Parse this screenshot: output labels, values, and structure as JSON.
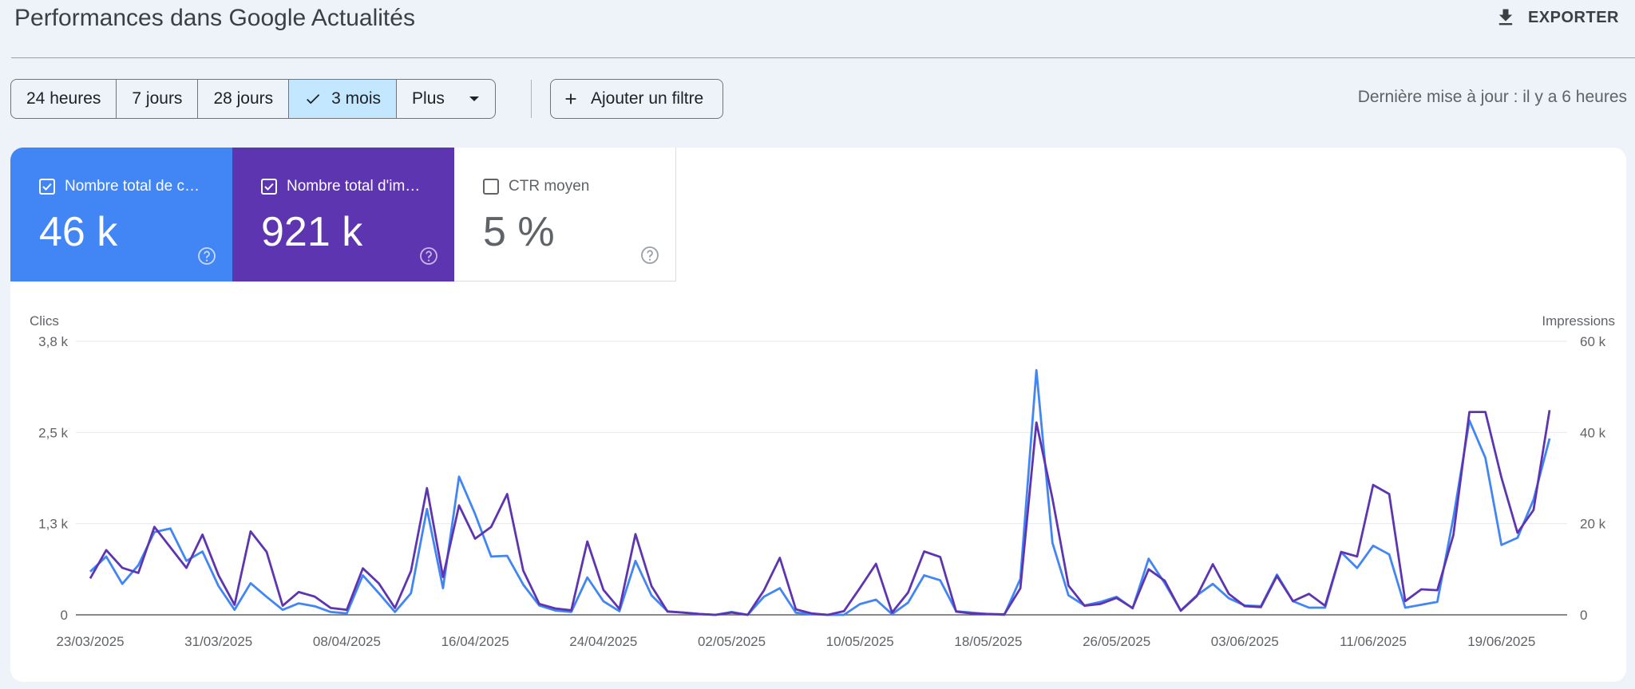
{
  "page_title": "Performances dans Google Actualités",
  "export_label": "EXPORTER",
  "date_ranges": [
    "24 heures",
    "7 jours",
    "28 jours",
    "3 mois",
    "Plus"
  ],
  "active_range": "3 mois",
  "add_filter_label": "Ajouter un filtre",
  "last_updated": "Dernière mise à jour : il y a 6 heures",
  "metrics": [
    {
      "label": "Nombre total de c…",
      "value": "46 k",
      "checked": true,
      "color": "#4285f4"
    },
    {
      "label": "Nombre total d'im…",
      "value": "921 k",
      "checked": true,
      "color": "#5e35b1"
    },
    {
      "label": "CTR moyen",
      "value": "5 %",
      "checked": false,
      "color": "#ffffff"
    }
  ],
  "chart_data": {
    "type": "line",
    "left_axis_title": "Clics",
    "right_axis_title": "Impressions",
    "left_ticks": [
      "0",
      "1,3 k",
      "2,5 k",
      "3,8 k"
    ],
    "right_ticks": [
      "0",
      "20 k",
      "40 k",
      "60 k"
    ],
    "left_ylim": [
      0,
      3800
    ],
    "right_ylim": [
      0,
      60000
    ],
    "x_labels": [
      "23/03/2025",
      "31/03/2025",
      "08/04/2025",
      "16/04/2025",
      "24/04/2025",
      "02/05/2025",
      "10/05/2025",
      "18/05/2025",
      "26/05/2025",
      "03/06/2025",
      "11/06/2025",
      "19/06/2025"
    ],
    "series": [
      {
        "axis": "left",
        "color": "#4285f4",
        "values": [
          600,
          810,
          430,
          690,
          1150,
          1200,
          750,
          880,
          400,
          70,
          440,
          250,
          70,
          160,
          120,
          40,
          20,
          550,
          300,
          40,
          300,
          1470,
          370,
          1920,
          1400,
          810,
          820,
          420,
          130,
          60,
          40,
          520,
          190,
          50,
          750,
          270,
          50,
          30,
          10,
          0,
          40,
          0,
          250,
          370,
          30,
          10,
          0,
          0,
          150,
          210,
          10,
          170,
          550,
          480,
          50,
          30,
          10,
          0,
          500,
          3400,
          1000,
          270,
          130,
          180,
          250,
          90,
          780,
          440,
          60,
          270,
          430,
          230,
          130,
          120,
          560,
          190,
          100,
          100,
          870,
          650,
          960,
          840,
          100,
          140,
          180,
          1350,
          2700,
          2180,
          970,
          1070,
          1600,
          2450
        ]
      },
      {
        "axis": "right",
        "color": "#5e35b1",
        "values": [
          8000,
          14200,
          10300,
          9200,
          19300,
          14800,
          10300,
          17600,
          8700,
          2200,
          18300,
          13800,
          2000,
          5000,
          4000,
          1500,
          1100,
          10200,
          6900,
          1500,
          9600,
          27800,
          8300,
          24000,
          16700,
          19300,
          26500,
          9700,
          2400,
          1400,
          1000,
          16100,
          5500,
          1300,
          17700,
          6300,
          700,
          500,
          200,
          0,
          500,
          0,
          5300,
          12500,
          1200,
          300,
          0,
          800,
          5900,
          11200,
          500,
          4900,
          13900,
          12700,
          700,
          300,
          200,
          100,
          5800,
          42200,
          25500,
          6400,
          2000,
          2400,
          3700,
          1500,
          10000,
          7500,
          900,
          4100,
          11100,
          4600,
          1900,
          1700,
          8500,
          3000,
          4600,
          2000,
          13800,
          12800,
          28500,
          26500,
          3000,
          5600,
          5400,
          17500,
          44500,
          44500,
          30100,
          18000,
          23000,
          44900
        ]
      }
    ]
  }
}
